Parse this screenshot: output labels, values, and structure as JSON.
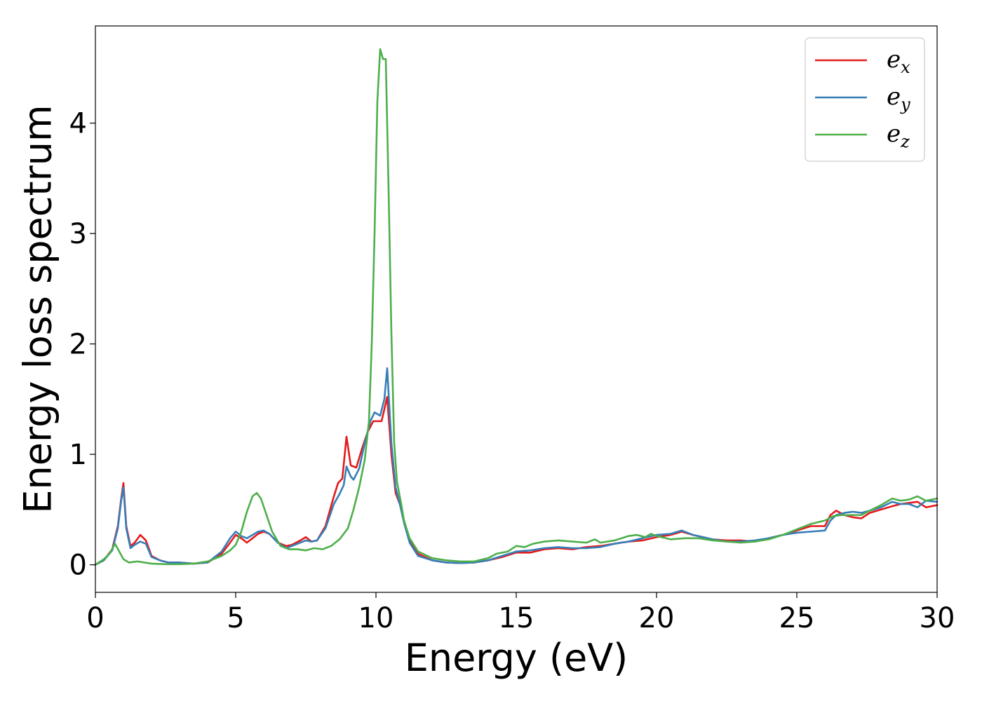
{
  "chart_data": {
    "type": "line",
    "xlabel": "Energy (eV)",
    "ylabel": "Energy loss spectrum",
    "xlim": [
      0,
      30
    ],
    "ylim": [
      -0.25,
      4.88
    ],
    "xticks": [
      0,
      5,
      10,
      15,
      20,
      25,
      30
    ],
    "xtick_labels": [
      "0",
      "5",
      "10",
      "15",
      "20",
      "25",
      "30"
    ],
    "yticks": [
      0,
      1,
      2,
      3,
      4
    ],
    "ytick_labels": [
      "0",
      "1",
      "2",
      "3",
      "4"
    ],
    "grid": false,
    "legend": {
      "placement": "top-right"
    },
    "series": [
      {
        "name": "e_x",
        "label_base": "e",
        "label_sub": "x",
        "color": "#e41a1c",
        "points": [
          [
            0,
            0
          ],
          [
            0.3,
            0.04
          ],
          [
            0.6,
            0.14
          ],
          [
            0.8,
            0.35
          ],
          [
            0.92,
            0.6
          ],
          [
            1.0,
            0.74
          ],
          [
            1.1,
            0.35
          ],
          [
            1.25,
            0.17
          ],
          [
            1.4,
            0.2
          ],
          [
            1.6,
            0.27
          ],
          [
            1.8,
            0.22
          ],
          [
            2.0,
            0.08
          ],
          [
            2.3,
            0.04
          ],
          [
            2.6,
            0.02
          ],
          [
            3.0,
            0.02
          ],
          [
            3.5,
            0.01
          ],
          [
            4.0,
            0.02
          ],
          [
            4.5,
            0.1
          ],
          [
            4.8,
            0.2
          ],
          [
            5.0,
            0.27
          ],
          [
            5.2,
            0.24
          ],
          [
            5.4,
            0.2
          ],
          [
            5.6,
            0.24
          ],
          [
            5.8,
            0.28
          ],
          [
            6.0,
            0.3
          ],
          [
            6.2,
            0.28
          ],
          [
            6.5,
            0.2
          ],
          [
            6.8,
            0.17
          ],
          [
            7.0,
            0.18
          ],
          [
            7.3,
            0.22
          ],
          [
            7.5,
            0.25
          ],
          [
            7.7,
            0.21
          ],
          [
            7.9,
            0.22
          ],
          [
            8.2,
            0.35
          ],
          [
            8.5,
            0.62
          ],
          [
            8.65,
            0.74
          ],
          [
            8.8,
            0.78
          ],
          [
            8.95,
            1.16
          ],
          [
            9.1,
            0.9
          ],
          [
            9.3,
            0.88
          ],
          [
            9.5,
            1.05
          ],
          [
            9.7,
            1.2
          ],
          [
            9.9,
            1.3
          ],
          [
            10.2,
            1.3
          ],
          [
            10.4,
            1.52
          ],
          [
            10.55,
            1.0
          ],
          [
            10.7,
            0.65
          ],
          [
            10.85,
            0.55
          ],
          [
            11.0,
            0.4
          ],
          [
            11.2,
            0.22
          ],
          [
            11.5,
            0.1
          ],
          [
            12.0,
            0.04
          ],
          [
            12.5,
            0.02
          ],
          [
            13.0,
            0.015
          ],
          [
            13.5,
            0.02
          ],
          [
            14.0,
            0.04
          ],
          [
            14.5,
            0.07
          ],
          [
            15.0,
            0.11
          ],
          [
            15.5,
            0.11
          ],
          [
            16.0,
            0.14
          ],
          [
            16.5,
            0.15
          ],
          [
            17.0,
            0.14
          ],
          [
            17.5,
            0.16
          ],
          [
            18.0,
            0.17
          ],
          [
            18.5,
            0.19
          ],
          [
            19.0,
            0.21
          ],
          [
            19.5,
            0.22
          ],
          [
            20.0,
            0.25
          ],
          [
            20.5,
            0.27
          ],
          [
            20.9,
            0.3
          ],
          [
            21.3,
            0.27
          ],
          [
            22.0,
            0.23
          ],
          [
            22.5,
            0.22
          ],
          [
            23.0,
            0.22
          ],
          [
            23.5,
            0.21
          ],
          [
            24.0,
            0.24
          ],
          [
            24.5,
            0.27
          ],
          [
            25.0,
            0.31
          ],
          [
            25.5,
            0.35
          ],
          [
            26.0,
            0.35
          ],
          [
            26.2,
            0.45
          ],
          [
            26.4,
            0.49
          ],
          [
            26.7,
            0.45
          ],
          [
            27.0,
            0.43
          ],
          [
            27.3,
            0.42
          ],
          [
            27.6,
            0.47
          ],
          [
            28.0,
            0.5
          ],
          [
            28.4,
            0.53
          ],
          [
            28.7,
            0.55
          ],
          [
            29.0,
            0.56
          ],
          [
            29.3,
            0.57
          ],
          [
            29.6,
            0.52
          ],
          [
            30.0,
            0.54
          ]
        ]
      },
      {
        "name": "e_y",
        "label_base": "e",
        "label_sub": "y",
        "color": "#377eb8",
        "points": [
          [
            0,
            0
          ],
          [
            0.3,
            0.04
          ],
          [
            0.6,
            0.13
          ],
          [
            0.8,
            0.33
          ],
          [
            0.92,
            0.58
          ],
          [
            1.0,
            0.7
          ],
          [
            1.1,
            0.33
          ],
          [
            1.25,
            0.15
          ],
          [
            1.4,
            0.18
          ],
          [
            1.6,
            0.21
          ],
          [
            1.8,
            0.19
          ],
          [
            2.0,
            0.07
          ],
          [
            2.3,
            0.04
          ],
          [
            2.6,
            0.02
          ],
          [
            3.0,
            0.02
          ],
          [
            3.5,
            0.01
          ],
          [
            4.0,
            0.02
          ],
          [
            4.5,
            0.12
          ],
          [
            4.8,
            0.24
          ],
          [
            5.0,
            0.3
          ],
          [
            5.2,
            0.26
          ],
          [
            5.4,
            0.24
          ],
          [
            5.6,
            0.27
          ],
          [
            5.8,
            0.3
          ],
          [
            6.0,
            0.31
          ],
          [
            6.2,
            0.28
          ],
          [
            6.5,
            0.2
          ],
          [
            6.8,
            0.15
          ],
          [
            7.0,
            0.17
          ],
          [
            7.3,
            0.2
          ],
          [
            7.5,
            0.22
          ],
          [
            7.7,
            0.21
          ],
          [
            7.9,
            0.22
          ],
          [
            8.2,
            0.33
          ],
          [
            8.5,
            0.55
          ],
          [
            8.7,
            0.64
          ],
          [
            8.85,
            0.72
          ],
          [
            8.95,
            0.89
          ],
          [
            9.1,
            0.8
          ],
          [
            9.2,
            0.77
          ],
          [
            9.4,
            0.87
          ],
          [
            9.6,
            1.1
          ],
          [
            9.8,
            1.3
          ],
          [
            9.95,
            1.38
          ],
          [
            10.15,
            1.35
          ],
          [
            10.3,
            1.5
          ],
          [
            10.4,
            1.78
          ],
          [
            10.55,
            1.1
          ],
          [
            10.7,
            0.7
          ],
          [
            10.85,
            0.55
          ],
          [
            11.0,
            0.38
          ],
          [
            11.2,
            0.2
          ],
          [
            11.5,
            0.08
          ],
          [
            12.0,
            0.04
          ],
          [
            12.5,
            0.02
          ],
          [
            13.0,
            0.015
          ],
          [
            13.5,
            0.02
          ],
          [
            14.0,
            0.04
          ],
          [
            14.5,
            0.08
          ],
          [
            15.0,
            0.12
          ],
          [
            15.5,
            0.13
          ],
          [
            16.0,
            0.15
          ],
          [
            16.5,
            0.16
          ],
          [
            17.0,
            0.15
          ],
          [
            17.5,
            0.15
          ],
          [
            18.0,
            0.16
          ],
          [
            18.5,
            0.19
          ],
          [
            19.0,
            0.21
          ],
          [
            19.5,
            0.24
          ],
          [
            20.0,
            0.27
          ],
          [
            20.5,
            0.28
          ],
          [
            20.9,
            0.31
          ],
          [
            21.3,
            0.27
          ],
          [
            22.0,
            0.23
          ],
          [
            22.5,
            0.21
          ],
          [
            23.0,
            0.21
          ],
          [
            23.5,
            0.22
          ],
          [
            24.0,
            0.24
          ],
          [
            24.5,
            0.27
          ],
          [
            25.0,
            0.29
          ],
          [
            25.5,
            0.3
          ],
          [
            26.0,
            0.31
          ],
          [
            26.2,
            0.4
          ],
          [
            26.4,
            0.45
          ],
          [
            26.7,
            0.47
          ],
          [
            27.0,
            0.48
          ],
          [
            27.3,
            0.47
          ],
          [
            27.6,
            0.49
          ],
          [
            28.0,
            0.52
          ],
          [
            28.4,
            0.57
          ],
          [
            28.7,
            0.55
          ],
          [
            29.0,
            0.55
          ],
          [
            29.3,
            0.52
          ],
          [
            29.6,
            0.58
          ],
          [
            30.0,
            0.57
          ]
        ]
      },
      {
        "name": "e_z",
        "label_base": "e",
        "label_sub": "z",
        "color": "#4daf4a",
        "points": [
          [
            0,
            0
          ],
          [
            0.3,
            0.05
          ],
          [
            0.5,
            0.1
          ],
          [
            0.7,
            0.19
          ],
          [
            0.85,
            0.12
          ],
          [
            1.0,
            0.05
          ],
          [
            1.2,
            0.02
          ],
          [
            1.5,
            0.03
          ],
          [
            2.0,
            0.01
          ],
          [
            2.5,
            0.005
          ],
          [
            3.0,
            0.005
          ],
          [
            3.5,
            0.01
          ],
          [
            4.0,
            0.03
          ],
          [
            4.5,
            0.08
          ],
          [
            4.8,
            0.13
          ],
          [
            5.0,
            0.18
          ],
          [
            5.2,
            0.3
          ],
          [
            5.4,
            0.48
          ],
          [
            5.6,
            0.62
          ],
          [
            5.75,
            0.65
          ],
          [
            5.9,
            0.6
          ],
          [
            6.1,
            0.45
          ],
          [
            6.3,
            0.3
          ],
          [
            6.6,
            0.17
          ],
          [
            6.9,
            0.14
          ],
          [
            7.2,
            0.14
          ],
          [
            7.5,
            0.13
          ],
          [
            7.8,
            0.15
          ],
          [
            8.1,
            0.14
          ],
          [
            8.4,
            0.17
          ],
          [
            8.7,
            0.23
          ],
          [
            9.0,
            0.33
          ],
          [
            9.2,
            0.5
          ],
          [
            9.4,
            0.7
          ],
          [
            9.6,
            0.95
          ],
          [
            9.75,
            1.3
          ],
          [
            9.85,
            2.0
          ],
          [
            9.95,
            3.0
          ],
          [
            10.05,
            4.2
          ],
          [
            10.15,
            4.67
          ],
          [
            10.25,
            4.58
          ],
          [
            10.35,
            4.58
          ],
          [
            10.45,
            3.4
          ],
          [
            10.55,
            2.1
          ],
          [
            10.65,
            1.1
          ],
          [
            10.75,
            0.75
          ],
          [
            10.9,
            0.55
          ],
          [
            11.0,
            0.4
          ],
          [
            11.2,
            0.24
          ],
          [
            11.5,
            0.12
          ],
          [
            12.0,
            0.06
          ],
          [
            12.5,
            0.04
          ],
          [
            13.0,
            0.03
          ],
          [
            13.5,
            0.03
          ],
          [
            14.0,
            0.06
          ],
          [
            14.3,
            0.1
          ],
          [
            14.7,
            0.12
          ],
          [
            15.0,
            0.17
          ],
          [
            15.3,
            0.16
          ],
          [
            15.6,
            0.19
          ],
          [
            16.0,
            0.21
          ],
          [
            16.5,
            0.22
          ],
          [
            17.0,
            0.21
          ],
          [
            17.5,
            0.2
          ],
          [
            17.8,
            0.23
          ],
          [
            18.0,
            0.2
          ],
          [
            18.5,
            0.22
          ],
          [
            19.0,
            0.26
          ],
          [
            19.3,
            0.27
          ],
          [
            19.6,
            0.25
          ],
          [
            19.8,
            0.28
          ],
          [
            20.0,
            0.26
          ],
          [
            20.5,
            0.23
          ],
          [
            21.0,
            0.24
          ],
          [
            21.5,
            0.24
          ],
          [
            22.0,
            0.22
          ],
          [
            22.5,
            0.21
          ],
          [
            23.0,
            0.2
          ],
          [
            23.5,
            0.21
          ],
          [
            24.0,
            0.23
          ],
          [
            24.5,
            0.27
          ],
          [
            25.0,
            0.32
          ],
          [
            25.5,
            0.37
          ],
          [
            26.0,
            0.4
          ],
          [
            26.3,
            0.44
          ],
          [
            26.6,
            0.45
          ],
          [
            27.0,
            0.45
          ],
          [
            27.3,
            0.45
          ],
          [
            27.6,
            0.49
          ],
          [
            28.0,
            0.54
          ],
          [
            28.4,
            0.6
          ],
          [
            28.7,
            0.58
          ],
          [
            29.0,
            0.59
          ],
          [
            29.3,
            0.62
          ],
          [
            29.6,
            0.58
          ],
          [
            30.0,
            0.6
          ]
        ]
      }
    ]
  }
}
